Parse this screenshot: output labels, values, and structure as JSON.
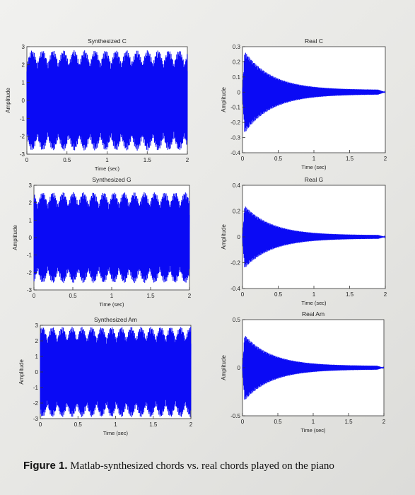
{
  "chart_data": [
    {
      "type": "line",
      "title": "Synthesized C",
      "xlabel": "Time (sec)",
      "ylabel": "Amplitude",
      "xlim": [
        0,
        2
      ],
      "ylim": [
        -3,
        3
      ],
      "xticks": [
        "0",
        "0.5",
        "1",
        "1.5",
        "2"
      ],
      "yticks": [
        "3",
        "2",
        "1",
        "0",
        "-1",
        "-2",
        "-3"
      ],
      "series": [
        {
          "color": "#0a0af5",
          "envelope": "constant",
          "peak": 2.8
        }
      ]
    },
    {
      "type": "line",
      "title": "Real C",
      "xlabel": "Time (sec)",
      "ylabel": "Amplitude",
      "xlim": [
        0,
        2
      ],
      "ylim": [
        -0.4,
        0.3
      ],
      "xticks": [
        "0",
        "0.5",
        "1",
        "1.5",
        "2"
      ],
      "yticks": [
        "0.3",
        "0.2",
        "0.1",
        "0",
        "-0.1",
        "-0.2",
        "-0.3",
        "-0.4"
      ],
      "series": [
        {
          "color": "#0a0af5",
          "envelope": "decay",
          "peak": 0.3
        }
      ]
    },
    {
      "type": "line",
      "title": "Synthesized G",
      "xlabel": "Time (sec)",
      "ylabel": "Amplitude",
      "xlim": [
        0,
        2
      ],
      "ylim": [
        -3,
        3
      ],
      "xticks": [
        "0",
        "0.5",
        "1",
        "1.5",
        "2"
      ],
      "yticks": [
        "3",
        "2",
        "1",
        "0",
        "-1",
        "-2",
        "-3"
      ],
      "series": [
        {
          "color": "#0a0af5",
          "envelope": "constant",
          "peak": 2.6
        }
      ]
    },
    {
      "type": "line",
      "title": "Real G",
      "xlabel": "Time (sec)",
      "ylabel": "Amplitude",
      "xlim": [
        0,
        2
      ],
      "ylim": [
        -0.4,
        0.4
      ],
      "xticks": [
        "0",
        "0.5",
        "1",
        "1.5",
        "2"
      ],
      "yticks": [
        "0.4",
        "0.2",
        "0",
        "-0.2",
        "-0.4"
      ],
      "series": [
        {
          "color": "#0a0af5",
          "envelope": "decay",
          "peak": 0.27
        }
      ]
    },
    {
      "type": "line",
      "title": "Synthesized Am",
      "xlabel": "Time (sec)",
      "ylabel": "Amplitude",
      "xlim": [
        0,
        2
      ],
      "ylim": [
        -3,
        3
      ],
      "xticks": [
        "0",
        "0.5",
        "1",
        "1.5",
        "2"
      ],
      "yticks": [
        "3",
        "2",
        "1",
        "0",
        "-1",
        "-2",
        "-3"
      ],
      "series": [
        {
          "color": "#0a0af5",
          "envelope": "constant",
          "peak": 2.9
        }
      ]
    },
    {
      "type": "line",
      "title": "Real Am",
      "xlabel": "Time (sec)",
      "ylabel": "Amplitude",
      "xlim": [
        0,
        2
      ],
      "ylim": [
        -0.5,
        0.5
      ],
      "xticks": [
        "0",
        "0.5",
        "1",
        "1.5",
        "2"
      ],
      "yticks": [
        "0.5",
        "0",
        "-0.5"
      ],
      "series": [
        {
          "color": "#0a0af5",
          "envelope": "decay",
          "peak": 0.38
        }
      ]
    }
  ],
  "caption": {
    "label": "Figure 1.",
    "text": " Matlab-synthesized chords vs. real chords played on the piano"
  }
}
